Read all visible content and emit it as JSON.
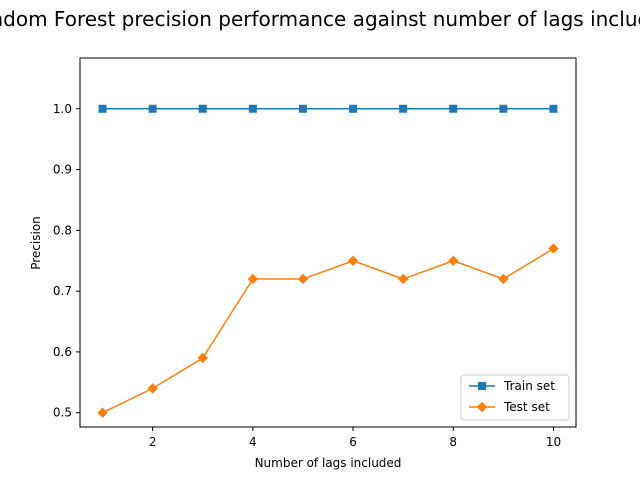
{
  "chart_data": {
    "type": "line",
    "title": "Random Forest precision performance against number of lags included",
    "xlabel": "Number of lags included",
    "ylabel": "Precision",
    "x": [
      1,
      2,
      3,
      4,
      5,
      6,
      7,
      8,
      9,
      10
    ],
    "xticks": [
      "2",
      "4",
      "6",
      "8",
      "10"
    ],
    "yticks": [
      "0.5",
      "0.6",
      "0.7",
      "0.8",
      "0.9",
      "1.0"
    ],
    "xlim": [
      0.55,
      10.45
    ],
    "ylim": [
      0.4765,
      1.0835
    ],
    "grid": false,
    "legend_position": "lower-right",
    "series": [
      {
        "name": "Train set",
        "marker": "square",
        "color": "#1f77b4",
        "values": [
          1.0,
          1.0,
          1.0,
          1.0,
          1.0,
          1.0,
          1.0,
          1.0,
          1.0,
          1.0
        ]
      },
      {
        "name": "Test set",
        "marker": "diamond",
        "color": "#ff7f0e",
        "values": [
          0.5,
          0.54,
          0.59,
          0.72,
          0.72,
          0.75,
          0.72,
          0.75,
          0.72,
          0.77
        ]
      }
    ]
  }
}
